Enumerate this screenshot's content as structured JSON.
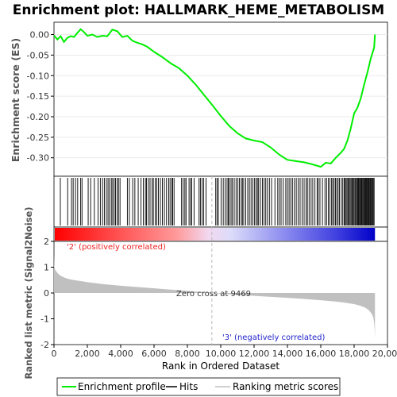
{
  "title": "Enrichment plot: HALLMARK_HEME_METABOLISM",
  "colors": {
    "enrichment_line": "#00ee00",
    "hits": "#000000",
    "ranking_fill": "#c0c0c0",
    "positive_label": "#ee2222",
    "negative_label": "#2222cc",
    "zero_cross_line": "#bbbbbb",
    "gradient_red": "#ff0000",
    "gradient_blue": "#0000dd"
  },
  "chart_data": [
    {
      "type": "line",
      "name": "enrichment-score",
      "title": "Enrichment plot: HALLMARK_HEME_METABOLISM",
      "ylabel": "Enrichment score (ES)",
      "xlim": [
        0,
        20000
      ],
      "ylim": [
        -0.345,
        0.03
      ],
      "yticks": [
        0.0,
        -0.05,
        -0.1,
        -0.15,
        -0.2,
        -0.25,
        -0.3
      ],
      "ytick_labels": [
        "0.00",
        "-0.05",
        "-0.10",
        "-0.15",
        "-0.20",
        "-0.25",
        "-0.30"
      ],
      "x": [
        0,
        200,
        400,
        600,
        800,
        1000,
        1200,
        1400,
        1600,
        1800,
        2000,
        2300,
        2600,
        2900,
        3200,
        3500,
        3800,
        4100,
        4400,
        4700,
        5000,
        5300,
        5600,
        6000,
        6500,
        7000,
        7500,
        8000,
        8500,
        9000,
        9500,
        10000,
        10500,
        11000,
        11500,
        12000,
        12500,
        13000,
        13500,
        14000,
        14500,
        15000,
        15500,
        16000,
        16300,
        16600,
        16900,
        17200,
        17400,
        17600,
        17800,
        18000,
        18200,
        18400,
        18600,
        18800,
        19000,
        19200,
        19250
      ],
      "values": [
        -0.002,
        -0.012,
        -0.004,
        -0.018,
        -0.008,
        -0.004,
        -0.006,
        0.004,
        0.013,
        0.006,
        -0.003,
        0.0,
        -0.006,
        -0.003,
        -0.004,
        0.012,
        0.008,
        -0.006,
        -0.003,
        -0.015,
        -0.02,
        -0.024,
        -0.03,
        -0.042,
        -0.055,
        -0.07,
        -0.082,
        -0.1,
        -0.122,
        -0.147,
        -0.172,
        -0.198,
        -0.222,
        -0.24,
        -0.253,
        -0.258,
        -0.262,
        -0.275,
        -0.292,
        -0.305,
        -0.308,
        -0.311,
        -0.316,
        -0.322,
        -0.312,
        -0.314,
        -0.3,
        -0.288,
        -0.278,
        -0.258,
        -0.228,
        -0.192,
        -0.178,
        -0.155,
        -0.122,
        -0.092,
        -0.058,
        -0.032,
        0.0
      ]
    },
    {
      "type": "scatter",
      "name": "hits",
      "label": "Hits",
      "x": [
        380,
        820,
        1050,
        1150,
        1290,
        1420,
        1600,
        1680,
        2050,
        2200,
        2420,
        2640,
        2780,
        2910,
        3020,
        3140,
        3240,
        3330,
        3440,
        3520,
        3610,
        3690,
        3790,
        3870,
        3960,
        4400,
        4520,
        4720,
        4850,
        5050,
        5220,
        5360,
        5480,
        5550,
        5660,
        5760,
        5880,
        5960,
        6080,
        6160,
        6260,
        6380,
        6500,
        6620,
        6750,
        6880,
        6960,
        7060,
        7120,
        7200,
        7650,
        7750,
        7850,
        7920,
        8100,
        8200,
        8250,
        8400,
        8700,
        8780,
        8880,
        8980,
        9120,
        9700,
        9780,
        9860,
        10020,
        10150,
        10270,
        10380,
        10450,
        10520,
        10620,
        10700,
        10810,
        10920,
        11030,
        11120,
        11230,
        11300,
        11380,
        11500,
        11620,
        11720,
        11820,
        11930,
        12030,
        12120,
        12200,
        12270,
        12380,
        12500,
        12600,
        12700,
        12800,
        12920,
        13050,
        13250,
        13420,
        13520,
        13620,
        13750,
        13900,
        14000,
        14100,
        14200,
        14300,
        14420,
        14530,
        14650,
        14760,
        14880,
        15000,
        15120,
        15200,
        15300,
        15420,
        15520,
        15650,
        15780,
        15850,
        15950,
        16100,
        16250,
        16350,
        16450,
        16550,
        16650,
        16720,
        16800,
        16880,
        16960,
        17040,
        17120,
        17230,
        17320,
        17400,
        17460,
        17520,
        17580,
        17650,
        17700,
        17760,
        17820,
        17880,
        17940,
        17990,
        18050,
        18100,
        18160,
        18210,
        18260,
        18300,
        18350,
        18400,
        18450,
        18490,
        18540,
        18590,
        18640,
        18690,
        18740,
        18790,
        18830,
        18880,
        18920,
        18970,
        19010,
        19060,
        19100,
        19150,
        19200
      ]
    },
    {
      "type": "area",
      "name": "ranked-list-metric",
      "label": "Ranking metric scores",
      "title": "",
      "xlabel": "Rank in Ordered Dataset",
      "ylabel": "Ranked list metric (Signal2Noise)",
      "xlim": [
        0,
        20000
      ],
      "ylim": [
        -2,
        2
      ],
      "yticks": [
        2,
        1,
        0,
        -1,
        -2
      ],
      "xticks": [
        0,
        2000,
        4000,
        6000,
        8000,
        10000,
        12000,
        14000,
        16000,
        18000,
        20000
      ],
      "xtick_labels": [
        "0",
        "2,000",
        "4,000",
        "6,000",
        "8,000",
        "10,000",
        "12,000",
        "14,000",
        "16,000",
        "18,000",
        "20,000"
      ],
      "x": [
        0,
        20,
        60,
        120,
        200,
        300,
        450,
        650,
        900,
        1200,
        1600,
        2000,
        2500,
        3000,
        3500,
        4000,
        5000,
        6000,
        7000,
        8000,
        9000,
        9469,
        10000,
        11000,
        12000,
        13000,
        14000,
        15000,
        16000,
        17000,
        17500,
        18000,
        18400,
        18700,
        18900,
        19050,
        19150,
        19200,
        19230,
        19250
      ],
      "values": [
        1.5,
        1.05,
        0.92,
        0.85,
        0.78,
        0.72,
        0.65,
        0.59,
        0.54,
        0.5,
        0.46,
        0.42,
        0.38,
        0.34,
        0.31,
        0.28,
        0.23,
        0.18,
        0.13,
        0.08,
        0.03,
        0.0,
        -0.03,
        -0.07,
        -0.11,
        -0.15,
        -0.19,
        -0.23,
        -0.28,
        -0.34,
        -0.38,
        -0.43,
        -0.5,
        -0.58,
        -0.68,
        -0.8,
        -0.95,
        -1.15,
        -1.4,
        -1.8
      ]
    }
  ],
  "annotations": {
    "zero_cross": "Zero cross at 9469",
    "zero_cross_rank": 9469,
    "positive": "'2' (positively correlated)",
    "negative": "'3' (negatively correlated)"
  },
  "legend": {
    "enrichment": "Enrichment profile",
    "hits": "Hits",
    "ranking": "Ranking metric scores"
  }
}
